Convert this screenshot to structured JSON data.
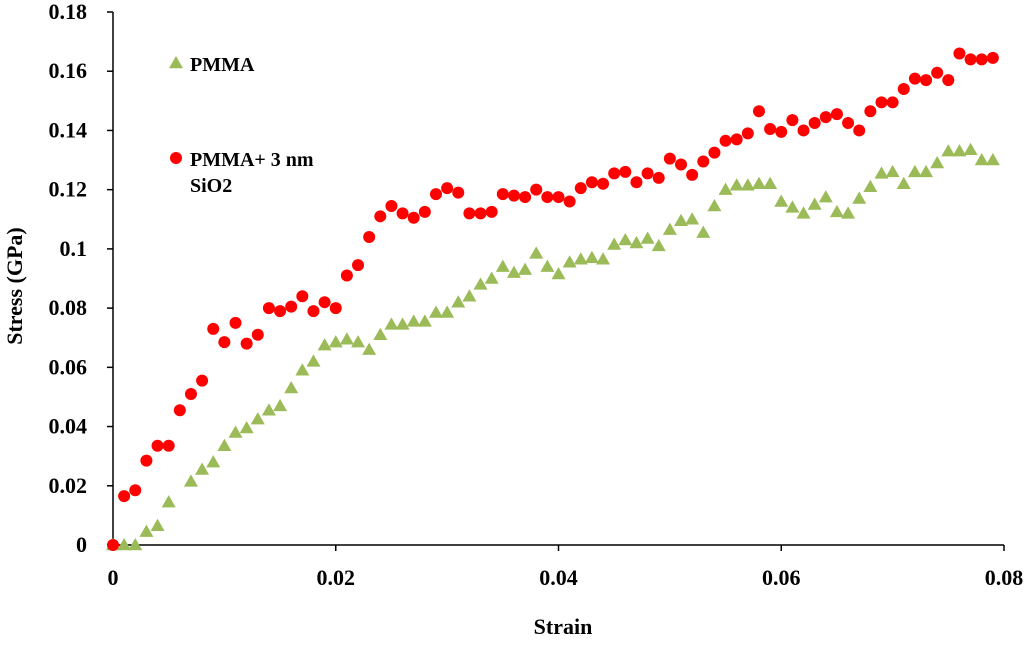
{
  "chart_data": {
    "type": "scatter",
    "title": "",
    "xlabel": "Strain",
    "ylabel": "Stress (GPa)",
    "xlim": [
      0,
      0.08
    ],
    "ylim": [
      0,
      0.18
    ],
    "x_ticks": [
      "0",
      "0.02",
      "0.04",
      "0.06",
      "0.08"
    ],
    "y_ticks": [
      "0",
      "0.02",
      "0.04",
      "0.06",
      "0.08",
      "0.1",
      "0.12",
      "0.14",
      "0.16",
      "0.18"
    ],
    "grid": false,
    "legend_position": "top-left",
    "series": [
      {
        "name": "PMMA",
        "name_lines": [
          "PMMA"
        ],
        "marker": "triangle",
        "color": "#9BBB59",
        "points": [
          [
            0,
            0
          ],
          [
            0.001,
            0
          ],
          [
            0.002,
            0
          ],
          [
            0.003,
            0.0045
          ],
          [
            0.004,
            0.0065
          ],
          [
            0.005,
            0.0145
          ],
          [
            0.007,
            0.0215
          ],
          [
            0.008,
            0.0255
          ],
          [
            0.009,
            0.028
          ],
          [
            0.01,
            0.0335
          ],
          [
            0.011,
            0.038
          ],
          [
            0.012,
            0.0395
          ],
          [
            0.013,
            0.0425
          ],
          [
            0.014,
            0.0455
          ],
          [
            0.015,
            0.047
          ],
          [
            0.016,
            0.053
          ],
          [
            0.017,
            0.059
          ],
          [
            0.018,
            0.062
          ],
          [
            0.019,
            0.0675
          ],
          [
            0.02,
            0.0685
          ],
          [
            0.021,
            0.0695
          ],
          [
            0.022,
            0.0685
          ],
          [
            0.023,
            0.066
          ],
          [
            0.024,
            0.071
          ],
          [
            0.025,
            0.0745
          ],
          [
            0.026,
            0.0745
          ],
          [
            0.027,
            0.0755
          ],
          [
            0.028,
            0.0755
          ],
          [
            0.029,
            0.0785
          ],
          [
            0.03,
            0.0785
          ],
          [
            0.031,
            0.082
          ],
          [
            0.032,
            0.084
          ],
          [
            0.033,
            0.088
          ],
          [
            0.034,
            0.09
          ],
          [
            0.035,
            0.094
          ],
          [
            0.036,
            0.092
          ],
          [
            0.037,
            0.093
          ],
          [
            0.038,
            0.0985
          ],
          [
            0.039,
            0.094
          ],
          [
            0.04,
            0.0915
          ],
          [
            0.041,
            0.0955
          ],
          [
            0.042,
            0.0965
          ],
          [
            0.043,
            0.097
          ],
          [
            0.044,
            0.0965
          ],
          [
            0.045,
            0.1015
          ],
          [
            0.046,
            0.103
          ],
          [
            0.047,
            0.102
          ],
          [
            0.048,
            0.1035
          ],
          [
            0.049,
            0.101
          ],
          [
            0.05,
            0.1065
          ],
          [
            0.051,
            0.1095
          ],
          [
            0.052,
            0.11
          ],
          [
            0.053,
            0.1055
          ],
          [
            0.054,
            0.1145
          ],
          [
            0.055,
            0.12
          ],
          [
            0.056,
            0.1215
          ],
          [
            0.057,
            0.1215
          ],
          [
            0.058,
            0.122
          ],
          [
            0.059,
            0.122
          ],
          [
            0.06,
            0.116
          ],
          [
            0.061,
            0.114
          ],
          [
            0.062,
            0.112
          ],
          [
            0.063,
            0.115
          ],
          [
            0.064,
            0.1175
          ],
          [
            0.065,
            0.1125
          ],
          [
            0.066,
            0.112
          ],
          [
            0.067,
            0.117
          ],
          [
            0.068,
            0.121
          ],
          [
            0.069,
            0.1255
          ],
          [
            0.07,
            0.126
          ],
          [
            0.071,
            0.122
          ],
          [
            0.072,
            0.126
          ],
          [
            0.073,
            0.126
          ],
          [
            0.074,
            0.129
          ],
          [
            0.075,
            0.133
          ],
          [
            0.076,
            0.133
          ],
          [
            0.077,
            0.1335
          ],
          [
            0.078,
            0.13
          ],
          [
            0.079,
            0.13
          ]
        ]
      },
      {
        "name": "PMMA+ 3 nm SiO2",
        "name_lines": [
          "PMMA+ 3 nm",
          "SiO2"
        ],
        "marker": "circle",
        "color": "#FF0000",
        "points": [
          [
            0,
            0
          ],
          [
            0.001,
            0.0165
          ],
          [
            0.002,
            0.0185
          ],
          [
            0.003,
            0.0285
          ],
          [
            0.004,
            0.0335
          ],
          [
            0.005,
            0.0335
          ],
          [
            0.006,
            0.0455
          ],
          [
            0.007,
            0.051
          ],
          [
            0.008,
            0.0555
          ],
          [
            0.009,
            0.073
          ],
          [
            0.01,
            0.0685
          ],
          [
            0.011,
            0.075
          ],
          [
            0.012,
            0.068
          ],
          [
            0.013,
            0.071
          ],
          [
            0.014,
            0.08
          ],
          [
            0.015,
            0.079
          ],
          [
            0.016,
            0.0805
          ],
          [
            0.017,
            0.084
          ],
          [
            0.018,
            0.079
          ],
          [
            0.019,
            0.082
          ],
          [
            0.02,
            0.08
          ],
          [
            0.021,
            0.091
          ],
          [
            0.022,
            0.0945
          ],
          [
            0.023,
            0.104
          ],
          [
            0.024,
            0.111
          ],
          [
            0.025,
            0.1145
          ],
          [
            0.026,
            0.112
          ],
          [
            0.027,
            0.1105
          ],
          [
            0.028,
            0.1125
          ],
          [
            0.029,
            0.1185
          ],
          [
            0.03,
            0.1205
          ],
          [
            0.031,
            0.119
          ],
          [
            0.032,
            0.112
          ],
          [
            0.033,
            0.112
          ],
          [
            0.034,
            0.1125
          ],
          [
            0.035,
            0.1185
          ],
          [
            0.036,
            0.118
          ],
          [
            0.037,
            0.1175
          ],
          [
            0.038,
            0.12
          ],
          [
            0.039,
            0.1175
          ],
          [
            0.04,
            0.1175
          ],
          [
            0.041,
            0.116
          ],
          [
            0.042,
            0.1205
          ],
          [
            0.043,
            0.1225
          ],
          [
            0.044,
            0.122
          ],
          [
            0.045,
            0.1255
          ],
          [
            0.046,
            0.126
          ],
          [
            0.047,
            0.1225
          ],
          [
            0.048,
            0.1255
          ],
          [
            0.049,
            0.124
          ],
          [
            0.05,
            0.1305
          ],
          [
            0.051,
            0.1285
          ],
          [
            0.052,
            0.125
          ],
          [
            0.053,
            0.1295
          ],
          [
            0.054,
            0.1325
          ],
          [
            0.055,
            0.1365
          ],
          [
            0.056,
            0.137
          ],
          [
            0.057,
            0.139
          ],
          [
            0.058,
            0.1465
          ],
          [
            0.059,
            0.1405
          ],
          [
            0.06,
            0.1395
          ],
          [
            0.061,
            0.1435
          ],
          [
            0.062,
            0.14
          ],
          [
            0.063,
            0.1425
          ],
          [
            0.064,
            0.1445
          ],
          [
            0.065,
            0.1455
          ],
          [
            0.066,
            0.1425
          ],
          [
            0.067,
            0.14
          ],
          [
            0.068,
            0.1465
          ],
          [
            0.069,
            0.1495
          ],
          [
            0.07,
            0.1495
          ],
          [
            0.071,
            0.154
          ],
          [
            0.072,
            0.1575
          ],
          [
            0.073,
            0.157
          ],
          [
            0.074,
            0.1595
          ],
          [
            0.075,
            0.157
          ],
          [
            0.076,
            0.166
          ],
          [
            0.077,
            0.164
          ],
          [
            0.078,
            0.164
          ],
          [
            0.079,
            0.1645
          ]
        ]
      }
    ]
  }
}
